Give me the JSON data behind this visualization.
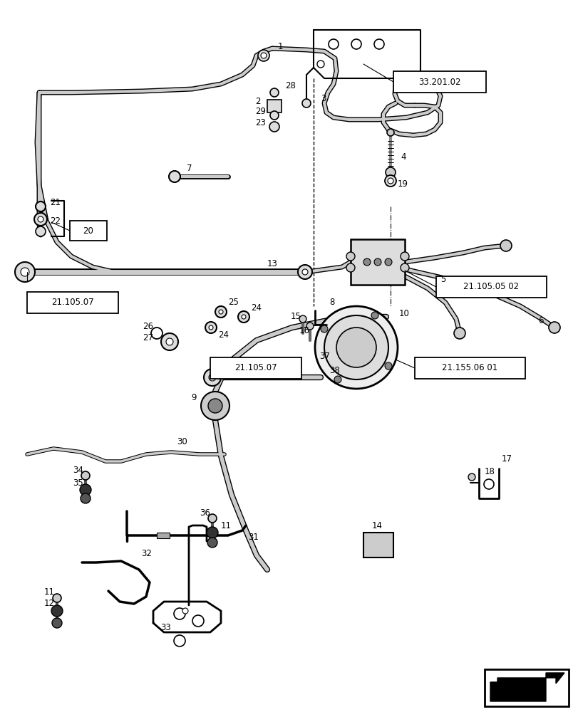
{
  "bg_color": "#ffffff",
  "line_color": "#000000",
  "fig_width": 8.12,
  "fig_height": 10.0,
  "dpi": 100
}
